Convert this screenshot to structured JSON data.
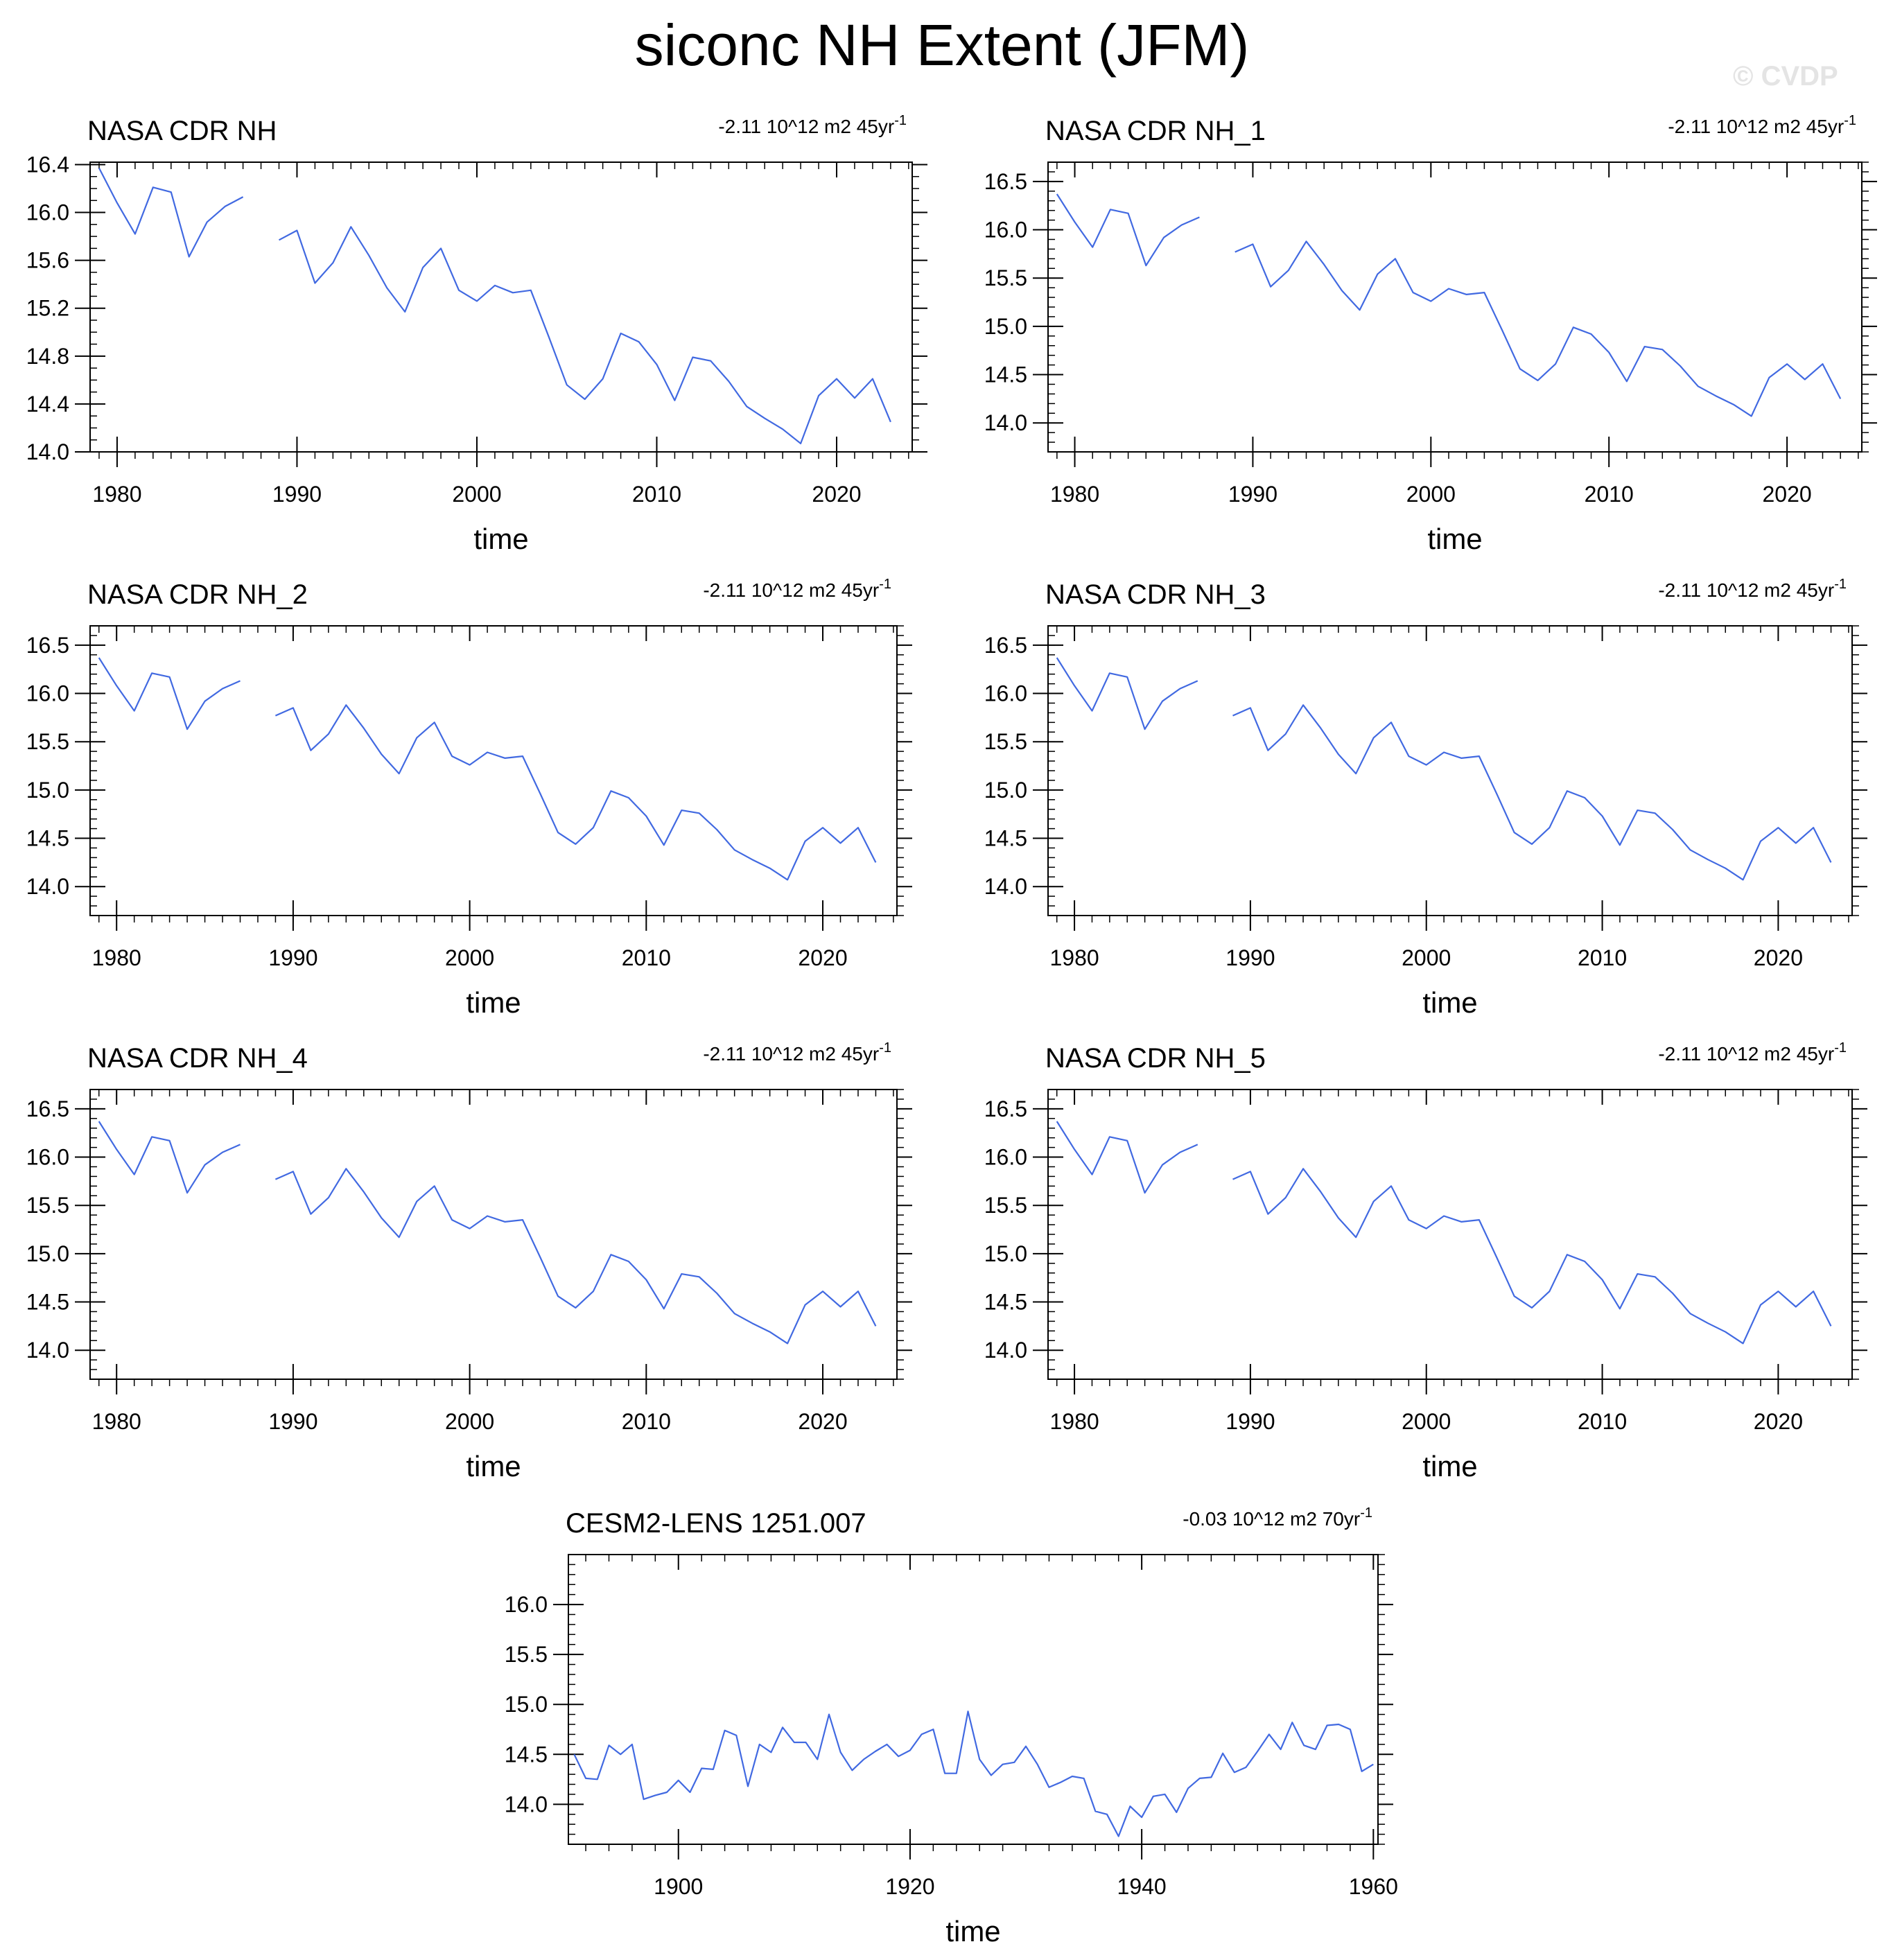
{
  "title": "siconc NH Extent (JFM)",
  "watermark": "© CVDP",
  "colors": {
    "line": "#4169e1",
    "axis": "#000000",
    "background": "#ffffff"
  },
  "chart_data": [
    {
      "type": "line",
      "panel": "NASA CDR NH",
      "title": "NASA CDR NH",
      "trend": "-2.11 10^12 m2 45yr",
      "trend_superscript": "-1",
      "xlabel": "time",
      "xlim": [
        1978.5,
        2024.2
      ],
      "ylim": [
        14.0,
        16.42
      ],
      "yticks": [
        14.0,
        14.4,
        14.8,
        15.2,
        15.6,
        16.0,
        16.4
      ],
      "ytick_decimals": 1,
      "y_minor": 0.1,
      "xticks": [
        1980,
        1990,
        2000,
        2010,
        2020
      ],
      "x_minor": 1,
      "series": [
        {
          "name": "NASA CDR NH",
          "x": [
            1979,
            1980,
            1981,
            1982,
            1983,
            1984,
            1985,
            1986,
            1987,
            1988,
            1989,
            1990,
            1991,
            1992,
            1993,
            1994,
            1995,
            1996,
            1997,
            1998,
            1999,
            2000,
            2001,
            2002,
            2003,
            2004,
            2005,
            2006,
            2007,
            2008,
            2009,
            2010,
            2011,
            2012,
            2013,
            2014,
            2015,
            2016,
            2017,
            2018,
            2019,
            2020,
            2021,
            2022,
            2023
          ],
          "values": [
            16.37,
            16.08,
            15.82,
            16.21,
            16.17,
            15.63,
            15.92,
            16.05,
            16.13,
            null,
            15.77,
            15.85,
            15.41,
            15.58,
            15.88,
            15.64,
            15.37,
            15.17,
            15.54,
            15.7,
            15.35,
            15.26,
            15.39,
            15.33,
            15.35,
            14.96,
            14.56,
            14.44,
            14.61,
            14.99,
            14.92,
            14.73,
            14.43,
            14.79,
            14.76,
            14.59,
            14.38,
            14.28,
            14.19,
            14.07,
            14.47,
            14.61,
            14.45,
            14.61,
            14.25
          ]
        }
      ]
    },
    {
      "type": "line",
      "panel": "NASA CDR NH_1",
      "title": "NASA CDR NH_1",
      "trend": "-2.11 10^12 m2 45yr",
      "trend_superscript": "-1",
      "xlabel": "time",
      "xlim": [
        1978.5,
        2024.2
      ],
      "ylim": [
        13.7,
        16.7
      ],
      "yticks": [
        14.0,
        14.5,
        15.0,
        15.5,
        16.0,
        16.5
      ],
      "ytick_decimals": 1,
      "y_minor": 0.1,
      "xticks": [
        1980,
        1990,
        2000,
        2010,
        2020
      ],
      "x_minor": 1,
      "series": [
        {
          "name": "NASA CDR NH_1",
          "x": [
            1979,
            1980,
            1981,
            1982,
            1983,
            1984,
            1985,
            1986,
            1987,
            1988,
            1989,
            1990,
            1991,
            1992,
            1993,
            1994,
            1995,
            1996,
            1997,
            1998,
            1999,
            2000,
            2001,
            2002,
            2003,
            2004,
            2005,
            2006,
            2007,
            2008,
            2009,
            2010,
            2011,
            2012,
            2013,
            2014,
            2015,
            2016,
            2017,
            2018,
            2019,
            2020,
            2021,
            2022,
            2023
          ],
          "values": [
            16.37,
            16.08,
            15.82,
            16.21,
            16.17,
            15.63,
            15.92,
            16.05,
            16.13,
            null,
            15.77,
            15.85,
            15.41,
            15.58,
            15.88,
            15.64,
            15.37,
            15.17,
            15.54,
            15.7,
            15.35,
            15.26,
            15.39,
            15.33,
            15.35,
            14.96,
            14.56,
            14.44,
            14.61,
            14.99,
            14.92,
            14.73,
            14.43,
            14.79,
            14.76,
            14.59,
            14.38,
            14.28,
            14.19,
            14.07,
            14.47,
            14.61,
            14.45,
            14.61,
            14.25
          ]
        }
      ]
    },
    {
      "type": "line",
      "panel": "NASA CDR NH_2",
      "title": "NASA CDR NH_2",
      "trend": "-2.11 10^12 m2 45yr",
      "trend_superscript": "-1",
      "xlabel": "time",
      "xlim": [
        1978.5,
        2024.2
      ],
      "ylim": [
        13.7,
        16.7
      ],
      "yticks": [
        14.0,
        14.5,
        15.0,
        15.5,
        16.0,
        16.5
      ],
      "ytick_decimals": 1,
      "y_minor": 0.1,
      "xticks": [
        1980,
        1990,
        2000,
        2010,
        2020
      ],
      "x_minor": 1,
      "series": [
        {
          "name": "NASA CDR NH_2",
          "x": [
            1979,
            1980,
            1981,
            1982,
            1983,
            1984,
            1985,
            1986,
            1987,
            1988,
            1989,
            1990,
            1991,
            1992,
            1993,
            1994,
            1995,
            1996,
            1997,
            1998,
            1999,
            2000,
            2001,
            2002,
            2003,
            2004,
            2005,
            2006,
            2007,
            2008,
            2009,
            2010,
            2011,
            2012,
            2013,
            2014,
            2015,
            2016,
            2017,
            2018,
            2019,
            2020,
            2021,
            2022,
            2023
          ],
          "values": [
            16.37,
            16.08,
            15.82,
            16.21,
            16.17,
            15.63,
            15.92,
            16.05,
            16.13,
            null,
            15.77,
            15.85,
            15.41,
            15.58,
            15.88,
            15.64,
            15.37,
            15.17,
            15.54,
            15.7,
            15.35,
            15.26,
            15.39,
            15.33,
            15.35,
            14.96,
            14.56,
            14.44,
            14.61,
            14.99,
            14.92,
            14.73,
            14.43,
            14.79,
            14.76,
            14.59,
            14.38,
            14.28,
            14.19,
            14.07,
            14.47,
            14.61,
            14.45,
            14.61,
            14.25
          ]
        }
      ]
    },
    {
      "type": "line",
      "panel": "NASA CDR NH_3",
      "title": "NASA CDR NH_3",
      "trend": "-2.11 10^12 m2 45yr",
      "trend_superscript": "-1",
      "xlabel": "time",
      "xlim": [
        1978.5,
        2024.2
      ],
      "ylim": [
        13.7,
        16.7
      ],
      "yticks": [
        14.0,
        14.5,
        15.0,
        15.5,
        16.0,
        16.5
      ],
      "ytick_decimals": 1,
      "y_minor": 0.1,
      "xticks": [
        1980,
        1990,
        2000,
        2010,
        2020
      ],
      "x_minor": 1,
      "series": [
        {
          "name": "NASA CDR NH_3",
          "x": [
            1979,
            1980,
            1981,
            1982,
            1983,
            1984,
            1985,
            1986,
            1987,
            1988,
            1989,
            1990,
            1991,
            1992,
            1993,
            1994,
            1995,
            1996,
            1997,
            1998,
            1999,
            2000,
            2001,
            2002,
            2003,
            2004,
            2005,
            2006,
            2007,
            2008,
            2009,
            2010,
            2011,
            2012,
            2013,
            2014,
            2015,
            2016,
            2017,
            2018,
            2019,
            2020,
            2021,
            2022,
            2023
          ],
          "values": [
            16.37,
            16.08,
            15.82,
            16.21,
            16.17,
            15.63,
            15.92,
            16.05,
            16.13,
            null,
            15.77,
            15.85,
            15.41,
            15.58,
            15.88,
            15.64,
            15.37,
            15.17,
            15.54,
            15.7,
            15.35,
            15.26,
            15.39,
            15.33,
            15.35,
            14.96,
            14.56,
            14.44,
            14.61,
            14.99,
            14.92,
            14.73,
            14.43,
            14.79,
            14.76,
            14.59,
            14.38,
            14.28,
            14.19,
            14.07,
            14.47,
            14.61,
            14.45,
            14.61,
            14.25
          ]
        }
      ]
    },
    {
      "type": "line",
      "panel": "NASA CDR NH_4",
      "title": "NASA CDR NH_4",
      "trend": "-2.11 10^12 m2 45yr",
      "trend_superscript": "-1",
      "xlabel": "time",
      "xlim": [
        1978.5,
        2024.2
      ],
      "ylim": [
        13.7,
        16.7
      ],
      "yticks": [
        14.0,
        14.5,
        15.0,
        15.5,
        16.0,
        16.5
      ],
      "ytick_decimals": 1,
      "y_minor": 0.1,
      "xticks": [
        1980,
        1990,
        2000,
        2010,
        2020
      ],
      "x_minor": 1,
      "series": [
        {
          "name": "NASA CDR NH_4",
          "x": [
            1979,
            1980,
            1981,
            1982,
            1983,
            1984,
            1985,
            1986,
            1987,
            1988,
            1989,
            1990,
            1991,
            1992,
            1993,
            1994,
            1995,
            1996,
            1997,
            1998,
            1999,
            2000,
            2001,
            2002,
            2003,
            2004,
            2005,
            2006,
            2007,
            2008,
            2009,
            2010,
            2011,
            2012,
            2013,
            2014,
            2015,
            2016,
            2017,
            2018,
            2019,
            2020,
            2021,
            2022,
            2023
          ],
          "values": [
            16.37,
            16.08,
            15.82,
            16.21,
            16.17,
            15.63,
            15.92,
            16.05,
            16.13,
            null,
            15.77,
            15.85,
            15.41,
            15.58,
            15.88,
            15.64,
            15.37,
            15.17,
            15.54,
            15.7,
            15.35,
            15.26,
            15.39,
            15.33,
            15.35,
            14.96,
            14.56,
            14.44,
            14.61,
            14.99,
            14.92,
            14.73,
            14.43,
            14.79,
            14.76,
            14.59,
            14.38,
            14.28,
            14.19,
            14.07,
            14.47,
            14.61,
            14.45,
            14.61,
            14.25
          ]
        }
      ]
    },
    {
      "type": "line",
      "panel": "NASA CDR NH_5",
      "title": "NASA CDR NH_5",
      "trend": "-2.11 10^12 m2 45yr",
      "trend_superscript": "-1",
      "xlabel": "time",
      "xlim": [
        1978.5,
        2024.2
      ],
      "ylim": [
        13.7,
        16.7
      ],
      "yticks": [
        14.0,
        14.5,
        15.0,
        15.5,
        16.0,
        16.5
      ],
      "ytick_decimals": 1,
      "y_minor": 0.1,
      "xticks": [
        1980,
        1990,
        2000,
        2010,
        2020
      ],
      "x_minor": 1,
      "series": [
        {
          "name": "NASA CDR NH_5",
          "x": [
            1979,
            1980,
            1981,
            1982,
            1983,
            1984,
            1985,
            1986,
            1987,
            1988,
            1989,
            1990,
            1991,
            1992,
            1993,
            1994,
            1995,
            1996,
            1997,
            1998,
            1999,
            2000,
            2001,
            2002,
            2003,
            2004,
            2005,
            2006,
            2007,
            2008,
            2009,
            2010,
            2011,
            2012,
            2013,
            2014,
            2015,
            2016,
            2017,
            2018,
            2019,
            2020,
            2021,
            2022,
            2023
          ],
          "values": [
            16.37,
            16.08,
            15.82,
            16.21,
            16.17,
            15.63,
            15.92,
            16.05,
            16.13,
            null,
            15.77,
            15.85,
            15.41,
            15.58,
            15.88,
            15.64,
            15.37,
            15.17,
            15.54,
            15.7,
            15.35,
            15.26,
            15.39,
            15.33,
            15.35,
            14.96,
            14.56,
            14.44,
            14.61,
            14.99,
            14.92,
            14.73,
            14.43,
            14.79,
            14.76,
            14.59,
            14.38,
            14.28,
            14.19,
            14.07,
            14.47,
            14.61,
            14.45,
            14.61,
            14.25
          ]
        }
      ]
    },
    {
      "type": "line",
      "panel": "CESM2-LENS 1251.007",
      "title": "CESM2-LENS 1251.007",
      "trend": "-0.03 10^12 m2 70yr",
      "trend_superscript": "-1",
      "xlabel": "time",
      "xlim": [
        1890.5,
        1960.4
      ],
      "ylim": [
        13.6,
        16.5
      ],
      "yticks": [
        14.0,
        14.5,
        15.0,
        15.5,
        16.0
      ],
      "ytick_decimals": 1,
      "y_minor": 0.1,
      "xticks": [
        1900,
        1920,
        1940,
        1960
      ],
      "x_minor": 2,
      "series": [
        {
          "name": "CESM2-LENS 1251.007",
          "x": [
            1891,
            1892,
            1893,
            1894,
            1895,
            1896,
            1897,
            1898,
            1899,
            1900,
            1901,
            1902,
            1903,
            1904,
            1905,
            1906,
            1907,
            1908,
            1909,
            1910,
            1911,
            1912,
            1913,
            1914,
            1915,
            1916,
            1917,
            1918,
            1919,
            1920,
            1921,
            1922,
            1923,
            1924,
            1925,
            1926,
            1927,
            1928,
            1929,
            1930,
            1931,
            1932,
            1933,
            1934,
            1935,
            1936,
            1937,
            1938,
            1939,
            1940,
            1941,
            1942,
            1943,
            1944,
            1945,
            1946,
            1947,
            1948,
            1949,
            1950,
            1951,
            1952,
            1953,
            1954,
            1955,
            1956,
            1957,
            1958,
            1959,
            1960
          ],
          "values": [
            14.5,
            14.26,
            14.25,
            14.59,
            14.5,
            14.6,
            14.05,
            14.09,
            14.12,
            14.24,
            14.12,
            14.36,
            14.35,
            14.74,
            14.69,
            14.18,
            14.6,
            14.52,
            14.77,
            14.62,
            14.62,
            14.45,
            14.9,
            14.52,
            14.34,
            14.45,
            14.53,
            14.6,
            14.48,
            14.54,
            14.7,
            14.75,
            14.31,
            14.31,
            14.93,
            14.45,
            14.29,
            14.4,
            14.42,
            14.58,
            14.4,
            14.17,
            14.22,
            14.28,
            14.26,
            13.93,
            13.9,
            13.68,
            13.98,
            13.87,
            14.08,
            14.1,
            13.92,
            14.16,
            14.26,
            14.27,
            14.51,
            14.32,
            14.37,
            14.53,
            14.7,
            14.55,
            14.82,
            14.59,
            14.55,
            14.79,
            14.8,
            14.75,
            14.33,
            14.4
          ]
        }
      ]
    }
  ]
}
